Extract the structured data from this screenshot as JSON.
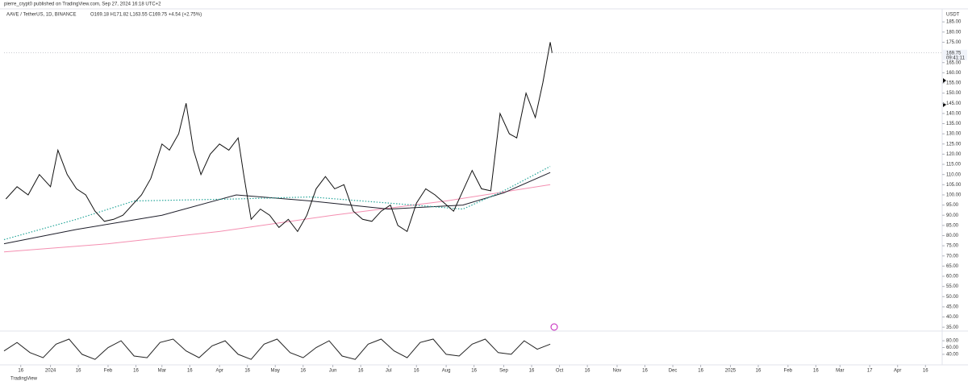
{
  "header": {
    "publisher": "pierre_crypt0 published on TradingView.com, Sep 27, 2024 16:18 UTC+2",
    "legend": "AAVE / TetherUS, 1D, BINANCE",
    "ohlc": "O169.18 H171.82 L163.55 C169.75 +4.54 (+2.75%)",
    "unit": "USDT",
    "footer": "TradingView"
  },
  "chart_data": [
    {
      "type": "line",
      "xlim": [
        "2023-12-07",
        "2025-04-25"
      ],
      "ylim": [
        33.5,
        191
      ],
      "yticks": [
        {
          "value": 35,
          "label": "35.00"
        },
        {
          "value": 40,
          "label": "40.00"
        },
        {
          "value": 45,
          "label": "45.00"
        },
        {
          "value": 50,
          "label": "50.00"
        },
        {
          "value": 55,
          "label": "55.00"
        },
        {
          "value": 60,
          "label": "60.00"
        },
        {
          "value": 65,
          "label": "65.00"
        },
        {
          "value": 70,
          "label": "70.00"
        },
        {
          "value": 75,
          "label": "75.00"
        },
        {
          "value": 80,
          "label": "80.00"
        },
        {
          "value": 85,
          "label": "85.00"
        },
        {
          "value": 90,
          "label": "90.00"
        },
        {
          "value": 95,
          "label": "95.00"
        },
        {
          "value": 100,
          "label": "100.00"
        },
        {
          "value": 105,
          "label": "105.00"
        },
        {
          "value": 110,
          "label": "110.00"
        },
        {
          "value": 115,
          "label": "115.00"
        },
        {
          "value": 120,
          "label": "120.00"
        },
        {
          "value": 125,
          "label": "125.00"
        },
        {
          "value": 130,
          "label": "130.00"
        },
        {
          "value": 135,
          "label": "135.00"
        },
        {
          "value": 140,
          "label": "140.00"
        },
        {
          "value": 145,
          "label": "145.00"
        },
        {
          "value": 150,
          "label": "150.00"
        },
        {
          "value": 155,
          "label": "155.00"
        },
        {
          "value": 160,
          "label": "160.00"
        },
        {
          "value": 165,
          "label": "165.00"
        },
        {
          "value": 175,
          "label": "175.00"
        },
        {
          "value": 180,
          "label": "180.00"
        },
        {
          "value": 185,
          "label": "185.00"
        }
      ],
      "last_price": {
        "value": 169.75,
        "label": "169.75"
      },
      "countdown": "09:41:11",
      "series": [
        {
          "color": "#f48fb1",
          "style": "solid",
          "x": [
            "2023-12-07",
            "2024-02-01",
            "2024-04-01",
            "2024-06-01",
            "2024-08-01",
            "2024-09-26"
          ],
          "values": [
            72,
            76,
            82,
            90,
            97,
            105
          ]
        },
        {
          "color": "#1e1e2a",
          "style": "solid",
          "x": [
            "2023-12-07",
            "2024-01-15",
            "2024-03-01",
            "2024-04-10",
            "2024-05-20",
            "2024-07-01",
            "2024-08-10",
            "2024-09-01",
            "2024-09-26"
          ],
          "values": [
            76,
            83,
            90,
            100,
            97,
            93,
            95,
            101,
            111
          ]
        },
        {
          "color": "#26a69a",
          "style": "dotted",
          "x": [
            "2023-12-07",
            "2024-01-15",
            "2024-02-15",
            "2024-04-10",
            "2024-05-20",
            "2024-07-01",
            "2024-08-10",
            "2024-09-01",
            "2024-09-26"
          ],
          "values": [
            78,
            88,
            97,
            98,
            99,
            96,
            93,
            102,
            114
          ]
        },
        {
          "color": "#111111",
          "style": "solid",
          "x": [
            "2023-12-08",
            "2023-12-14",
            "2023-12-20",
            "2023-12-26",
            "2024-01-01",
            "2024-01-05",
            "2024-01-10",
            "2024-01-15",
            "2024-01-20",
            "2024-01-25",
            "2024-01-30",
            "2024-02-04",
            "2024-02-09",
            "2024-02-14",
            "2024-02-19",
            "2024-02-24",
            "2024-03-01",
            "2024-03-05",
            "2024-03-10",
            "2024-03-14",
            "2024-03-18",
            "2024-03-22",
            "2024-03-27",
            "2024-04-01",
            "2024-04-06",
            "2024-04-11",
            "2024-04-14",
            "2024-04-18",
            "2024-04-23",
            "2024-04-28",
            "2024-05-03",
            "2024-05-08",
            "2024-05-13",
            "2024-05-18",
            "2024-05-23",
            "2024-05-28",
            "2024-06-02",
            "2024-06-07",
            "2024-06-12",
            "2024-06-17",
            "2024-06-22",
            "2024-06-27",
            "2024-07-02",
            "2024-07-06",
            "2024-07-11",
            "2024-07-16",
            "2024-07-21",
            "2024-07-26",
            "2024-07-31",
            "2024-08-05",
            "2024-08-10",
            "2024-08-15",
            "2024-08-20",
            "2024-08-25",
            "2024-08-30",
            "2024-09-04",
            "2024-09-08",
            "2024-09-13",
            "2024-09-18",
            "2024-09-22",
            "2024-09-26",
            "2024-09-27"
          ],
          "values": [
            98,
            104,
            100,
            110,
            104,
            122,
            110,
            103,
            100,
            92,
            87,
            88,
            90,
            95,
            100,
            108,
            125,
            122,
            130,
            145,
            122,
            110,
            120,
            125,
            122,
            128,
            110,
            88,
            93,
            90,
            84,
            88,
            82,
            90,
            103,
            109,
            103,
            105,
            92,
            88,
            87,
            92,
            95,
            85,
            82,
            96,
            103,
            100,
            96,
            92,
            102,
            112,
            103,
            102,
            140,
            130,
            128,
            150,
            138,
            155,
            175,
            169.75
          ]
        }
      ]
    },
    {
      "type": "line",
      "xlim": [
        "2023-12-07",
        "2025-04-25"
      ],
      "ylim": [
        16,
        104
      ],
      "yticks": [
        {
          "value": 40,
          "label": "40.00"
        },
        {
          "value": 60,
          "label": "60.00"
        },
        {
          "value": 80,
          "label": "80.00"
        }
      ],
      "xticks": [
        {
          "value": "2023-12-16",
          "label": "16"
        },
        {
          "value": "2024-01-01",
          "label": "2024"
        },
        {
          "value": "2024-01-16",
          "label": "16"
        },
        {
          "value": "2024-02-01",
          "label": "Feb"
        },
        {
          "value": "2024-02-16",
          "label": "16"
        },
        {
          "value": "2024-03-01",
          "label": "Mar"
        },
        {
          "value": "2024-03-16",
          "label": "16"
        },
        {
          "value": "2024-04-01",
          "label": "Apr"
        },
        {
          "value": "2024-04-16",
          "label": "16"
        },
        {
          "value": "2024-05-01",
          "label": "May"
        },
        {
          "value": "2024-05-16",
          "label": "16"
        },
        {
          "value": "2024-06-01",
          "label": "Jun"
        },
        {
          "value": "2024-06-16",
          "label": "16"
        },
        {
          "value": "2024-07-01",
          "label": "Jul"
        },
        {
          "value": "2024-07-16",
          "label": "16"
        },
        {
          "value": "2024-08-01",
          "label": "Aug"
        },
        {
          "value": "2024-08-16",
          "label": "16"
        },
        {
          "value": "2024-09-01",
          "label": "Sep"
        },
        {
          "value": "2024-09-16",
          "label": "16"
        },
        {
          "value": "2024-10-01",
          "label": "Oct"
        },
        {
          "value": "2024-10-16",
          "label": "16"
        },
        {
          "value": "2024-11-01",
          "label": "Nov"
        },
        {
          "value": "2024-11-16",
          "label": "16"
        },
        {
          "value": "2024-12-01",
          "label": "Dec"
        },
        {
          "value": "2024-12-16",
          "label": "16"
        },
        {
          "value": "2025-01-01",
          "label": "2025"
        },
        {
          "value": "2025-01-16",
          "label": "16"
        },
        {
          "value": "2025-02-01",
          "label": "Feb"
        },
        {
          "value": "2025-02-16",
          "label": "16"
        },
        {
          "value": "2025-03-01",
          "label": "Mar"
        },
        {
          "value": "2025-03-17",
          "label": "17"
        },
        {
          "value": "2025-04-01",
          "label": "Apr"
        },
        {
          "value": "2025-04-16",
          "label": "16"
        }
      ],
      "series": [
        {
          "color": "#222222",
          "style": "solid",
          "x": [
            "2023-12-07",
            "2023-12-14",
            "2023-12-21",
            "2023-12-28",
            "2024-01-04",
            "2024-01-11",
            "2024-01-18",
            "2024-01-25",
            "2024-02-01",
            "2024-02-08",
            "2024-02-15",
            "2024-02-22",
            "2024-02-29",
            "2024-03-07",
            "2024-03-14",
            "2024-03-21",
            "2024-03-28",
            "2024-04-04",
            "2024-04-11",
            "2024-04-18",
            "2024-04-25",
            "2024-05-02",
            "2024-05-09",
            "2024-05-16",
            "2024-05-23",
            "2024-05-30",
            "2024-06-06",
            "2024-06-13",
            "2024-06-20",
            "2024-06-27",
            "2024-07-04",
            "2024-07-11",
            "2024-07-18",
            "2024-07-25",
            "2024-08-01",
            "2024-08-08",
            "2024-08-15",
            "2024-08-22",
            "2024-08-29",
            "2024-09-05",
            "2024-09-12",
            "2024-09-19",
            "2024-09-26"
          ],
          "values": [
            50,
            75,
            45,
            30,
            70,
            85,
            40,
            25,
            60,
            80,
            35,
            30,
            75,
            85,
            50,
            30,
            65,
            80,
            40,
            25,
            70,
            85,
            45,
            30,
            60,
            80,
            35,
            25,
            70,
            85,
            50,
            30,
            75,
            85,
            40,
            35,
            70,
            85,
            45,
            40,
            80,
            55,
            70
          ]
        }
      ]
    }
  ]
}
